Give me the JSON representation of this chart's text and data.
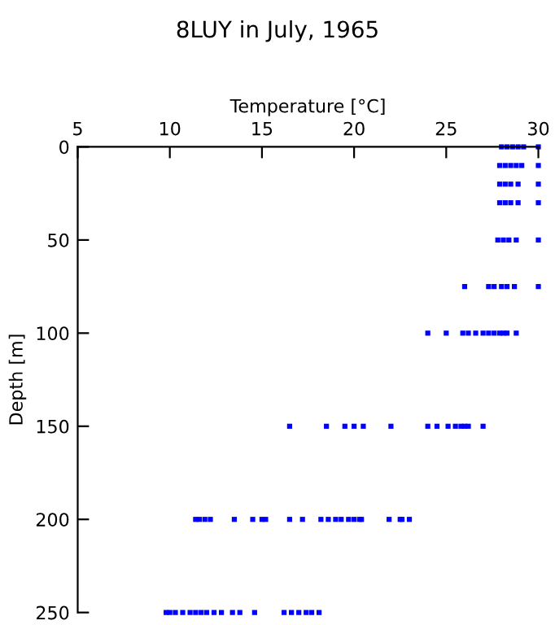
{
  "chart_data": {
    "type": "scatter",
    "title": "8LUY in July, 1965",
    "xlabel": "Temperature [°C]",
    "ylabel": "Depth [m]",
    "xlim": [
      5,
      30
    ],
    "xticks": [
      5,
      10,
      15,
      20,
      25,
      30
    ],
    "ylim": [
      250,
      0
    ],
    "yticks": [
      0,
      50,
      100,
      150,
      200,
      250
    ],
    "marker": "square",
    "series": [
      {
        "color": "#0000ff",
        "x": [
          28.0,
          28.3,
          28.6,
          28.9,
          29.2,
          30.0,
          27.9,
          28.2,
          28.5,
          28.8,
          29.1,
          30.0,
          27.9,
          28.2,
          28.5,
          28.9,
          30.0,
          27.9,
          28.2,
          28.5,
          28.9,
          30.0,
          27.8,
          28.1,
          28.4,
          28.8,
          30.0,
          26.0,
          27.3,
          27.6,
          28.0,
          28.3,
          28.7,
          30.0,
          24.0,
          25.0,
          25.9,
          26.2,
          26.6,
          27.0,
          27.3,
          27.6,
          27.9,
          28.1,
          28.3,
          28.8,
          16.5,
          18.5,
          19.5,
          20.0,
          20.5,
          22.0,
          24.0,
          24.5,
          25.1,
          25.5,
          25.8,
          26.0,
          26.2,
          27.0,
          11.4,
          11.6,
          11.9,
          12.2,
          13.5,
          14.5,
          15.0,
          15.2,
          16.5,
          17.2,
          18.2,
          18.6,
          19.0,
          19.3,
          19.7,
          20.0,
          20.3,
          20.4,
          21.9,
          22.5,
          22.6,
          23.0,
          9.8,
          10.0,
          10.3,
          10.7,
          11.1,
          11.4,
          11.7,
          12.0,
          12.4,
          12.8,
          13.4,
          13.8,
          14.6,
          16.2,
          16.6,
          17.0,
          17.4,
          17.7,
          18.1
        ],
        "values": [
          0,
          0,
          0,
          0,
          0,
          0,
          10,
          10,
          10,
          10,
          10,
          10,
          20,
          20,
          20,
          20,
          20,
          30,
          30,
          30,
          30,
          30,
          50,
          50,
          50,
          50,
          50,
          75,
          75,
          75,
          75,
          75,
          75,
          75,
          100,
          100,
          100,
          100,
          100,
          100,
          100,
          100,
          100,
          100,
          100,
          100,
          150,
          150,
          150,
          150,
          150,
          150,
          150,
          150,
          150,
          150,
          150,
          150,
          150,
          150,
          200,
          200,
          200,
          200,
          200,
          200,
          200,
          200,
          200,
          200,
          200,
          200,
          200,
          200,
          200,
          200,
          200,
          200,
          200,
          200,
          200,
          200,
          250,
          250,
          250,
          250,
          250,
          250,
          250,
          250,
          250,
          250,
          250,
          250,
          250,
          250,
          250,
          250,
          250,
          250,
          250
        ]
      }
    ]
  }
}
